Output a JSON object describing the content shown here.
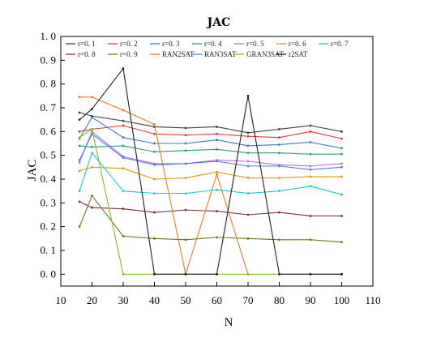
{
  "chart_data": {
    "type": "line",
    "title": "JAC",
    "xlabel": "N",
    "ylabel": "JAC",
    "xlim": [
      10,
      110
    ],
    "ylim": [
      -0.05,
      1.0
    ],
    "xticks": [
      10,
      20,
      30,
      40,
      50,
      60,
      70,
      80,
      90,
      100,
      110
    ],
    "yticks": [
      0.0,
      0.1,
      0.2,
      0.3,
      0.4,
      0.5,
      0.6,
      0.7,
      0.8,
      0.9,
      1.0
    ],
    "xtick_labels": [
      "10",
      "20",
      "30",
      "40",
      "50",
      "60",
      "70",
      "80",
      "90",
      "100",
      "110"
    ],
    "ytick_labels": [
      "0. 0",
      "0. 1",
      "0. 2",
      "0. 3",
      "0. 4",
      "0. 5",
      "0. 6",
      "0. 7",
      "0. 8",
      "0. 9",
      "1. 0"
    ],
    "legend_position": "top",
    "x": [
      16,
      20,
      30,
      40,
      50,
      60,
      70,
      80,
      90,
      100
    ],
    "series": [
      {
        "name": "r=0. 1",
        "color": "#404040",
        "values": [
          0.68,
          0.665,
          0.645,
          0.62,
          0.615,
          0.62,
          0.595,
          0.61,
          0.625,
          0.6
        ]
      },
      {
        "name": "r=0. 2",
        "color": "#e03c3c",
        "values": [
          0.6,
          0.61,
          0.625,
          0.59,
          0.585,
          0.59,
          0.58,
          0.575,
          0.6,
          0.57
        ]
      },
      {
        "name": "r=0. 3",
        "color": "#3c78c8",
        "values": [
          0.57,
          0.66,
          0.575,
          0.55,
          0.55,
          0.565,
          0.54,
          0.545,
          0.555,
          0.53
        ]
      },
      {
        "name": "r=0. 4",
        "color": "#2a9d7a",
        "values": [
          0.54,
          0.535,
          0.54,
          0.515,
          0.52,
          0.525,
          0.51,
          0.51,
          0.505,
          0.505
        ]
      },
      {
        "name": "r=0. 5",
        "color": "#c06cd8",
        "values": [
          0.47,
          0.6,
          0.495,
          0.465,
          0.465,
          0.48,
          0.475,
          0.46,
          0.455,
          0.465
        ]
      },
      {
        "name": "r=0. 6",
        "color": "#d89a0a",
        "values": [
          0.435,
          0.45,
          0.445,
          0.4,
          0.405,
          0.43,
          0.405,
          0.405,
          0.41,
          0.41
        ]
      },
      {
        "name": "r=0. 7",
        "color": "#1ec8d0",
        "values": [
          0.35,
          0.51,
          0.35,
          0.34,
          0.34,
          0.355,
          0.34,
          0.35,
          0.37,
          0.335
        ]
      },
      {
        "name": "r=0. 8",
        "color": "#7a3040",
        "values": [
          0.305,
          0.28,
          0.275,
          0.26,
          0.27,
          0.265,
          0.25,
          0.26,
          0.245,
          0.245
        ]
      },
      {
        "name": "r=0. 9",
        "color": "#6a7a10",
        "values": [
          0.2,
          0.33,
          0.16,
          0.15,
          0.145,
          0.155,
          0.15,
          0.145,
          0.145,
          0.135
        ]
      },
      {
        "name": "RAN2SAT",
        "color": "#f07820",
        "values": [
          0.745,
          0.745,
          0.69,
          0.63,
          0.0,
          0.42,
          0.0,
          null,
          null,
          null
        ]
      },
      {
        "name": "RAN3SAT",
        "color": "#4a80e0",
        "values": [
          0.48,
          0.59,
          0.49,
          0.46,
          0.465,
          0.475,
          0.455,
          0.455,
          0.44,
          0.45
        ]
      },
      {
        "name": "GRAN3SAT",
        "color": "#80c020",
        "values": [
          0.575,
          0.61,
          0.0,
          0.0,
          0.0,
          0.0,
          0.0,
          0.0,
          0.0,
          0.0
        ]
      },
      {
        "name": "r2SAT",
        "color": "#202020",
        "values": [
          0.65,
          0.695,
          0.865,
          0.0,
          0.0,
          0.0,
          0.75,
          0.0,
          0.0,
          0.0
        ]
      }
    ]
  }
}
